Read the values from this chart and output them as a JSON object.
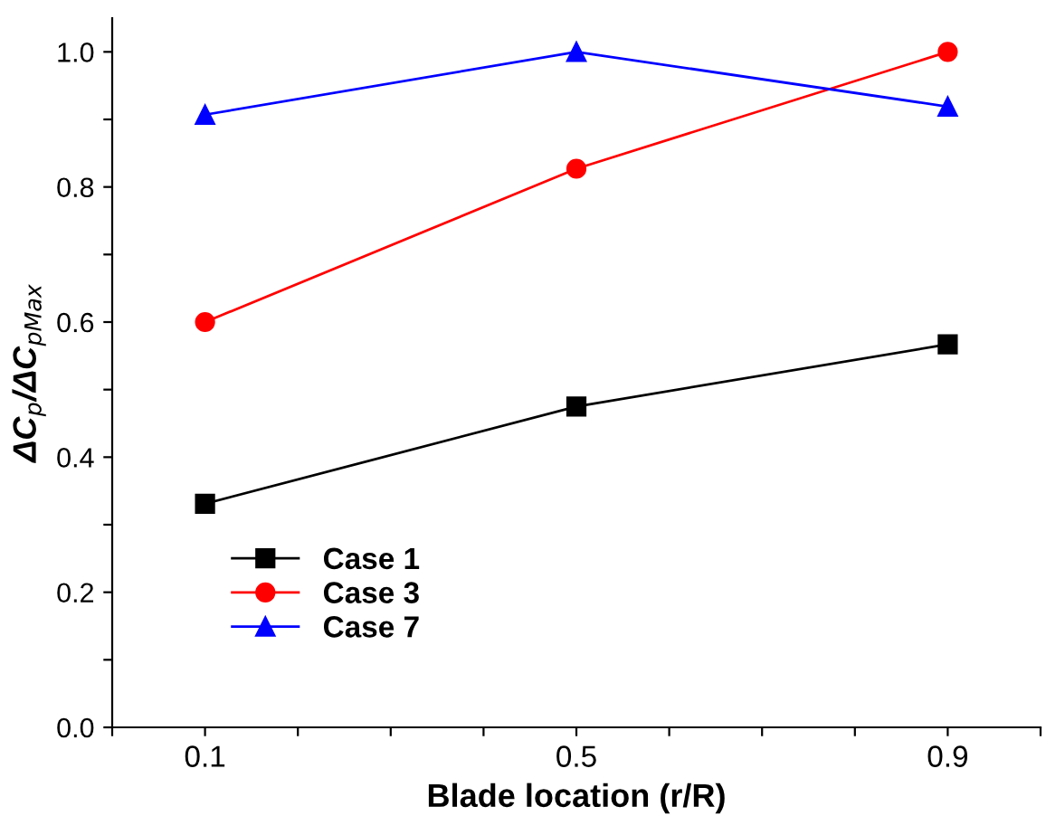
{
  "chart_data": {
    "type": "line",
    "xlabel": "Blade location (r/R)",
    "ylabel": "ΔC$_{p}$/ΔC$_{pMax}$",
    "x": [
      0.1,
      0.5,
      0.9
    ],
    "series": [
      {
        "name": "Case 1",
        "color": "#000000",
        "marker": "square",
        "values": [
          0.331,
          0.475,
          0.567
        ]
      },
      {
        "name": "Case 3",
        "color": "#ff0000",
        "marker": "circle",
        "values": [
          0.6,
          0.827,
          1.0
        ]
      },
      {
        "name": "Case 7",
        "color": "#0000ff",
        "marker": "triangle",
        "values": [
          0.907,
          1.0,
          0.919
        ]
      }
    ],
    "xlim": [
      0.0,
      1.0
    ],
    "xticks": [
      {
        "value": 0.0,
        "label": null
      },
      0.1,
      {
        "value": 0.2,
        "label": null
      },
      {
        "value": 0.3,
        "label": null
      },
      {
        "value": 0.4,
        "label": null
      },
      0.5,
      {
        "value": 0.6,
        "label": null
      },
      {
        "value": 0.7,
        "label": null
      },
      {
        "value": 0.8,
        "label": null
      },
      0.9,
      {
        "value": 1.0,
        "label": null
      }
    ],
    "ylim": [
      0.0,
      1.05
    ],
    "yticks": [
      {
        "value": 0.0,
        "label": "0.0"
      },
      {
        "value": 0.1,
        "label": null
      },
      0.2,
      {
        "value": 0.3,
        "label": null
      },
      0.4,
      {
        "value": 0.5,
        "label": null
      },
      0.6,
      {
        "value": 0.7,
        "label": null
      },
      0.8,
      {
        "value": 0.9,
        "label": null
      },
      {
        "value": 1.0,
        "label": "1.0"
      }
    ],
    "grid": false,
    "legend": "bottom left",
    "line_style": "solid"
  }
}
